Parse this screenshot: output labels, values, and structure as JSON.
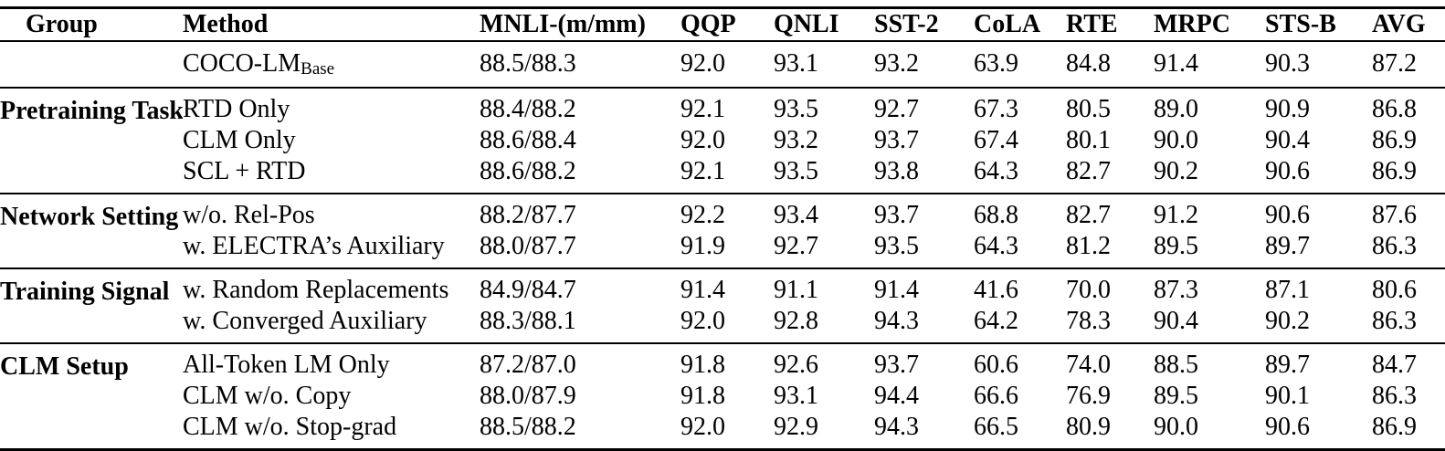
{
  "colors": {
    "text": "#000000",
    "background": "#ffffff",
    "rule": "#000000"
  },
  "table": {
    "columns": [
      "Group",
      "Method",
      "MNLI-(m/mm)",
      "QQP",
      "QNLI",
      "SST-2",
      "CoLA",
      "RTE",
      "MRPC",
      "STS-B",
      "AVG"
    ],
    "sections": [
      {
        "group": "",
        "rows": [
          {
            "method": "COCO-LM",
            "method_subscript": "Base",
            "values": [
              "88.5/88.3",
              "92.0",
              "93.1",
              "93.2",
              "63.9",
              "84.8",
              "91.4",
              "90.3",
              "87.2"
            ]
          }
        ]
      },
      {
        "group": "Pretraining Task",
        "rows": [
          {
            "method": "RTD Only",
            "values": [
              "88.4/88.2",
              "92.1",
              "93.5",
              "92.7",
              "67.3",
              "80.5",
              "89.0",
              "90.9",
              "86.8"
            ]
          },
          {
            "method": "CLM Only",
            "values": [
              "88.6/88.4",
              "92.0",
              "93.2",
              "93.7",
              "67.4",
              "80.1",
              "90.0",
              "90.4",
              "86.9"
            ]
          },
          {
            "method": "SCL + RTD",
            "values": [
              "88.6/88.2",
              "92.1",
              "93.5",
              "93.8",
              "64.3",
              "82.7",
              "90.2",
              "90.6",
              "86.9"
            ]
          }
        ]
      },
      {
        "group": "Network Setting",
        "rows": [
          {
            "method": "w/o. Rel-Pos",
            "values": [
              "88.2/87.7",
              "92.2",
              "93.4",
              "93.7",
              "68.8",
              "82.7",
              "91.2",
              "90.6",
              "87.6"
            ]
          },
          {
            "method": "w. ELECTRA’s Auxiliary",
            "values": [
              "88.0/87.7",
              "91.9",
              "92.7",
              "93.5",
              "64.3",
              "81.2",
              "89.5",
              "89.7",
              "86.3"
            ]
          }
        ]
      },
      {
        "group": "Training Signal",
        "rows": [
          {
            "method": "w. Random Replacements",
            "values": [
              "84.9/84.7",
              "91.4",
              "91.1",
              "91.4",
              "41.6",
              "70.0",
              "87.3",
              "87.1",
              "80.6"
            ]
          },
          {
            "method": "w. Converged Auxiliary",
            "values": [
              "88.3/88.1",
              "92.0",
              "92.8",
              "94.3",
              "64.2",
              "78.3",
              "90.4",
              "90.2",
              "86.3"
            ]
          }
        ]
      },
      {
        "group": "CLM Setup",
        "rows": [
          {
            "method": "All-Token LM Only",
            "values": [
              "87.2/87.0",
              "91.8",
              "92.6",
              "93.7",
              "60.6",
              "74.0",
              "88.5",
              "89.7",
              "84.7"
            ]
          },
          {
            "method": "CLM w/o. Copy",
            "values": [
              "88.0/87.9",
              "91.8",
              "93.1",
              "94.4",
              "66.6",
              "76.9",
              "89.5",
              "90.1",
              "86.3"
            ]
          },
          {
            "method": "CLM w/o. Stop-grad",
            "values": [
              "88.5/88.2",
              "92.0",
              "92.9",
              "94.3",
              "66.5",
              "80.9",
              "90.0",
              "90.6",
              "86.9"
            ]
          }
        ]
      }
    ]
  }
}
